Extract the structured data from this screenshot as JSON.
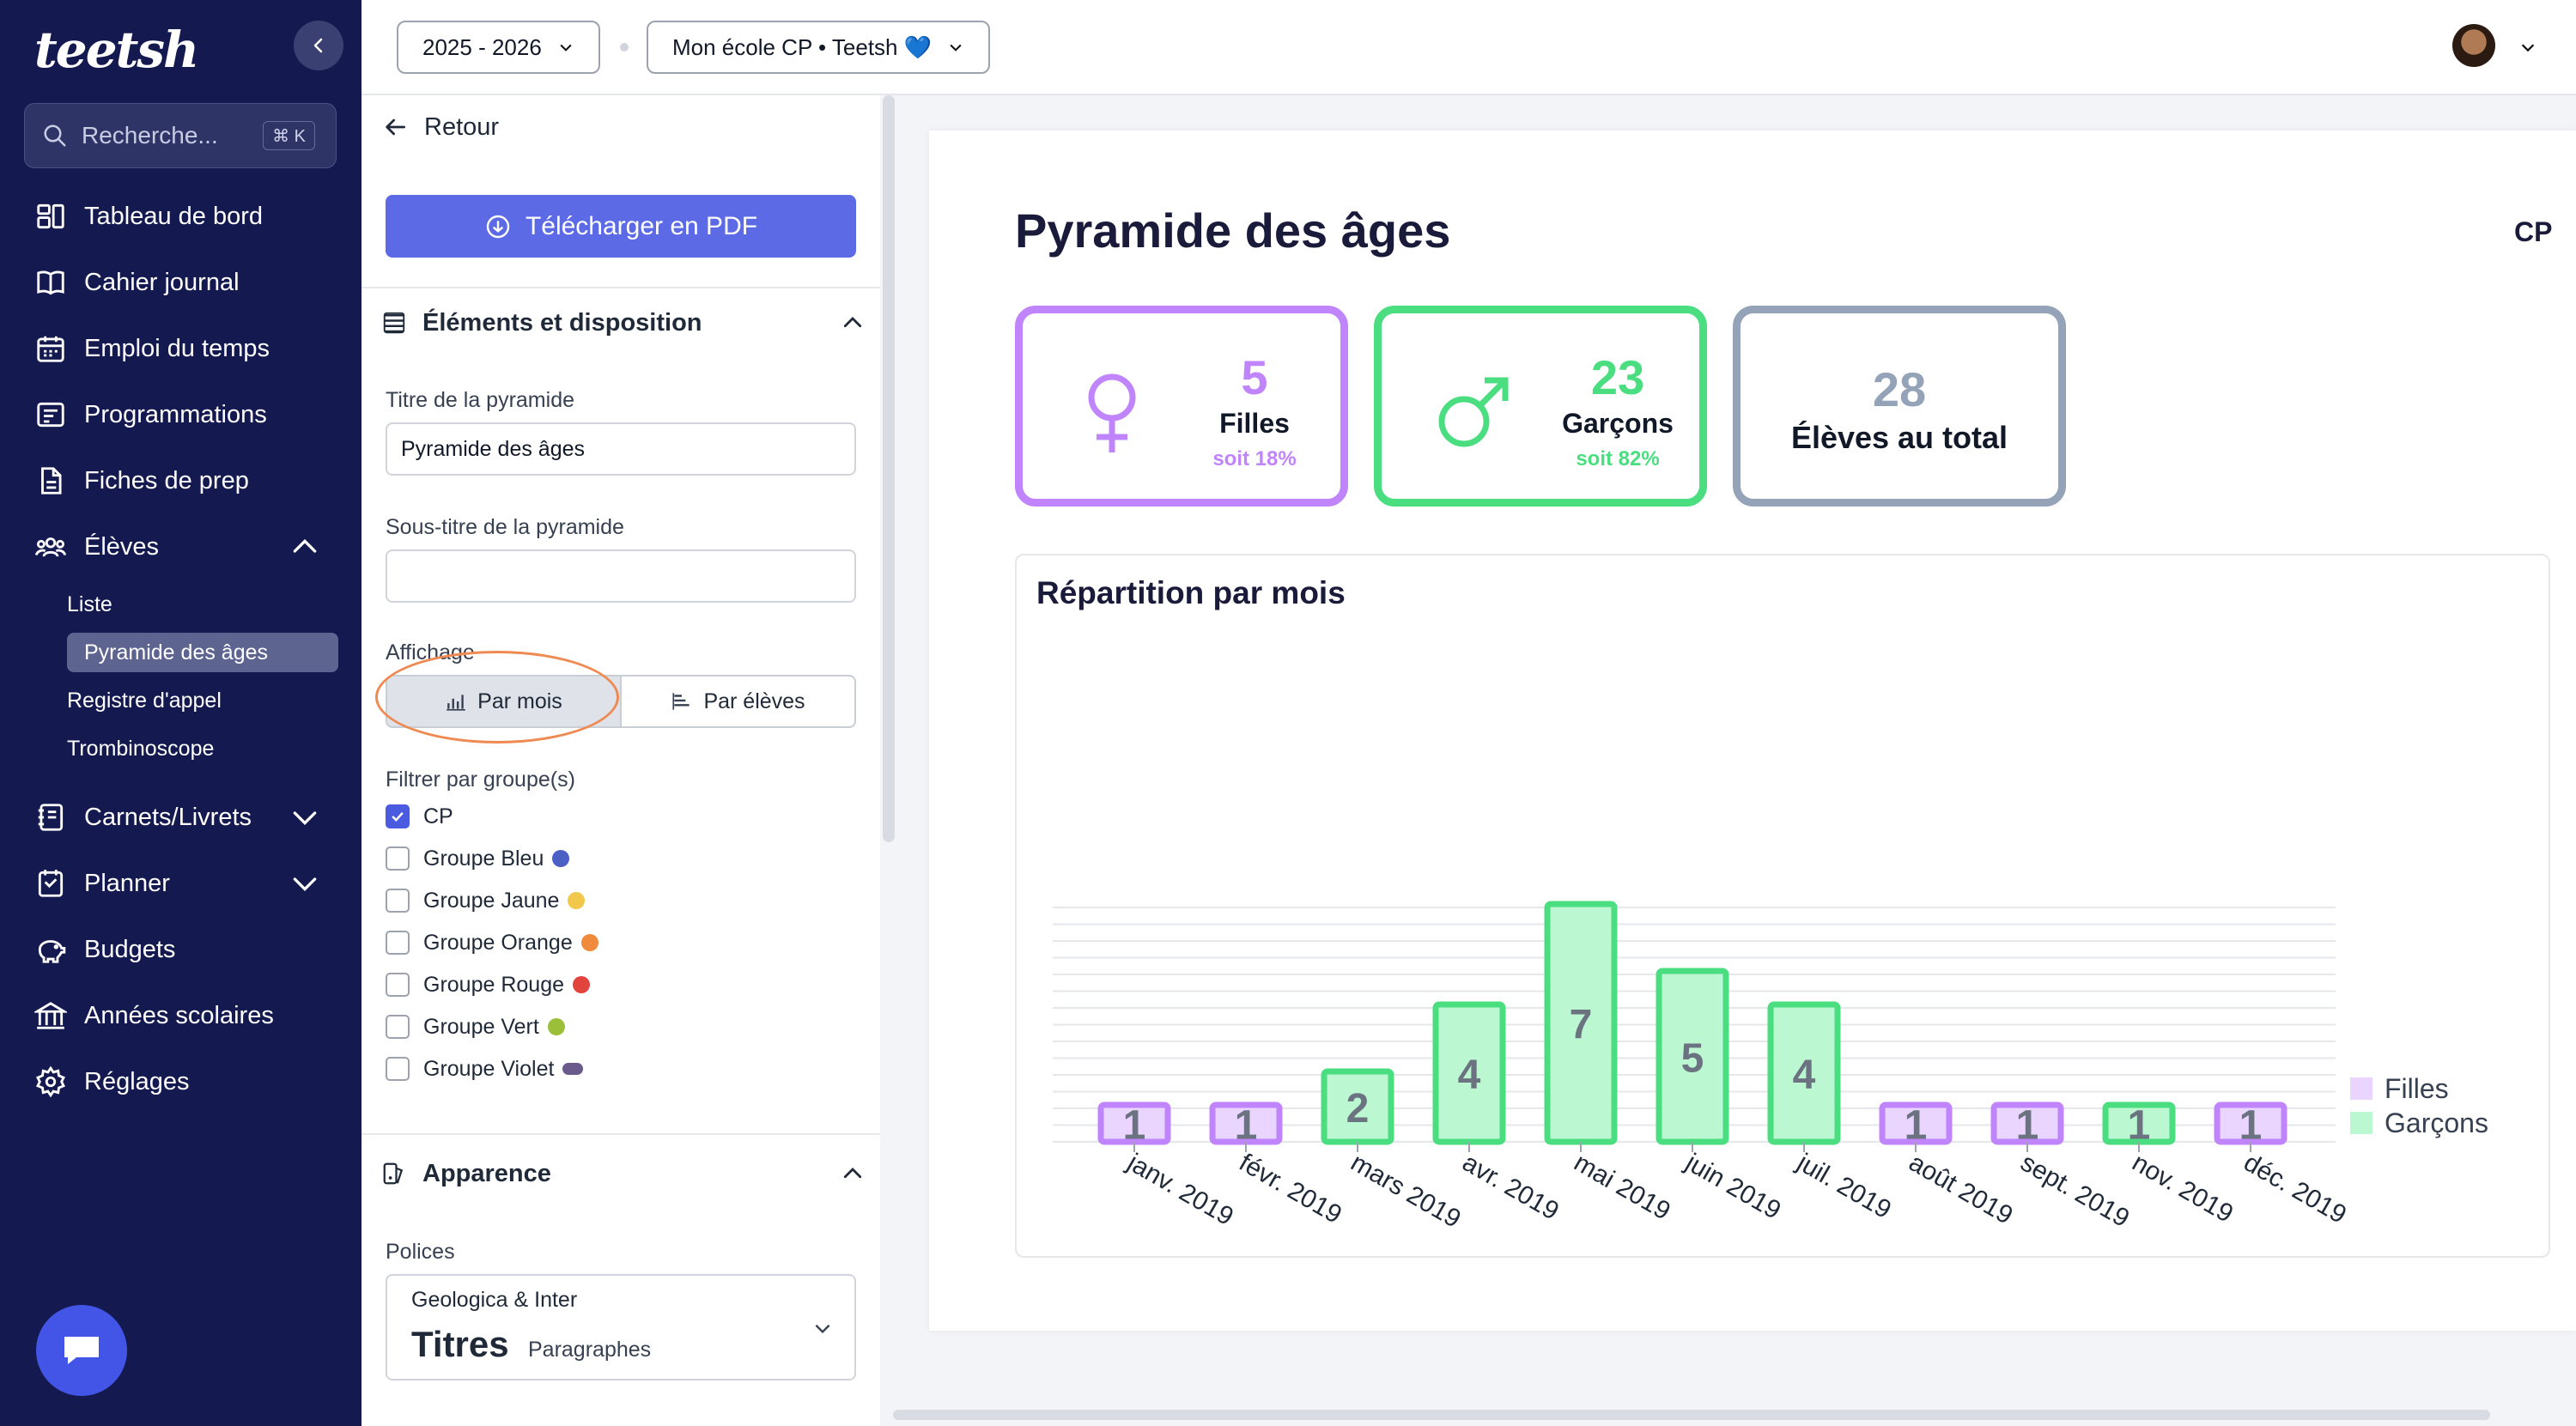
{
  "nav": {
    "logo": "teetsh",
    "search_placeholder": "Recherche...",
    "search_shortcut": "⌘ K",
    "items": [
      {
        "label": "Tableau de bord",
        "icon": "dashboard-icon"
      },
      {
        "label": "Cahier journal",
        "icon": "book-icon"
      },
      {
        "label": "Emploi du temps",
        "icon": "calendar-icon"
      },
      {
        "label": "Programmations",
        "icon": "list-icon"
      },
      {
        "label": "Fiches de prep",
        "icon": "file-icon"
      },
      {
        "label": "Élèves",
        "icon": "users-icon"
      },
      {
        "label": "Carnets/Livrets",
        "icon": "notebook-icon"
      },
      {
        "label": "Planner",
        "icon": "planner-icon"
      },
      {
        "label": "Budgets",
        "icon": "piggy-bank-icon"
      },
      {
        "label": "Années scolaires",
        "icon": "school-icon"
      },
      {
        "label": "Réglages",
        "icon": "gear-icon"
      }
    ],
    "sub_items": [
      "Liste",
      "Pyramide des âges",
      "Registre d'appel",
      "Trombinoscope"
    ]
  },
  "topbar": {
    "year": "2025 - 2026",
    "school": "Mon école CP • Teetsh 💙"
  },
  "panel": {
    "back_label": "Retour",
    "pdf_button": "Télécharger en PDF",
    "section_elements": "Éléments et disposition",
    "title_label": "Titre de la pyramide",
    "title_value": "Pyramide des âges",
    "subtitle_label": "Sous-titre de la pyramide",
    "subtitle_value": "",
    "display_label": "Affichage",
    "display_options": [
      "Par mois",
      "Par élèves"
    ],
    "filter_label": "Filtrer par groupe(s)",
    "groups": [
      {
        "label": "CP",
        "checked": true,
        "color": ""
      },
      {
        "label": "Groupe Bleu",
        "checked": false,
        "color": "#4b5fc4"
      },
      {
        "label": "Groupe Jaune",
        "checked": false,
        "color": "#f2c84b"
      },
      {
        "label": "Groupe Orange",
        "checked": false,
        "color": "#f08a3c"
      },
      {
        "label": "Groupe Rouge",
        "checked": false,
        "color": "#e0443c"
      },
      {
        "label": "Groupe Vert",
        "checked": false,
        "color": "#9cbf3a"
      },
      {
        "label": "Groupe Violet",
        "checked": false,
        "color": "#6b5a8c"
      }
    ],
    "section_appearance": "Apparence",
    "fonts_label": "Polices",
    "font_pair": "Geologica & Inter",
    "font_titles": "Titres",
    "font_paragraphs": "Paragraphes"
  },
  "preview": {
    "title": "Pyramide des âges",
    "class_name": "CP",
    "girls": {
      "count": "5",
      "label": "Filles",
      "percent": "soit 18%"
    },
    "boys": {
      "count": "23",
      "label": "Garçons",
      "percent": "soit 82%"
    },
    "total": {
      "count": "28",
      "label": "Élèves au total"
    },
    "colors": {
      "girls": "#c084fc",
      "girls_fill": "#e9d5ff",
      "boys": "#4ade80",
      "boys_fill": "#bbf7d0",
      "total": "#94a3b8",
      "nav_bg": "#141a4f",
      "accent": "#5c6ae6"
    }
  },
  "chart_data": {
    "type": "bar",
    "title": "Répartition par mois",
    "categories": [
      "janv. 2019",
      "févr. 2019",
      "mars 2019",
      "avr. 2019",
      "mai 2019",
      "juin 2019",
      "juil. 2019",
      "août 2019",
      "sept. 2019",
      "nov. 2019",
      "déc. 2019"
    ],
    "series": [
      {
        "name": "Filles",
        "values": [
          1,
          1,
          0,
          0,
          0,
          0,
          0,
          1,
          1,
          0,
          1
        ]
      },
      {
        "name": "Garçons",
        "values": [
          0,
          0,
          2,
          4,
          7,
          5,
          4,
          0,
          0,
          1,
          0
        ]
      }
    ],
    "ylim": [
      0,
      7
    ],
    "grid": true,
    "legend": "right"
  }
}
